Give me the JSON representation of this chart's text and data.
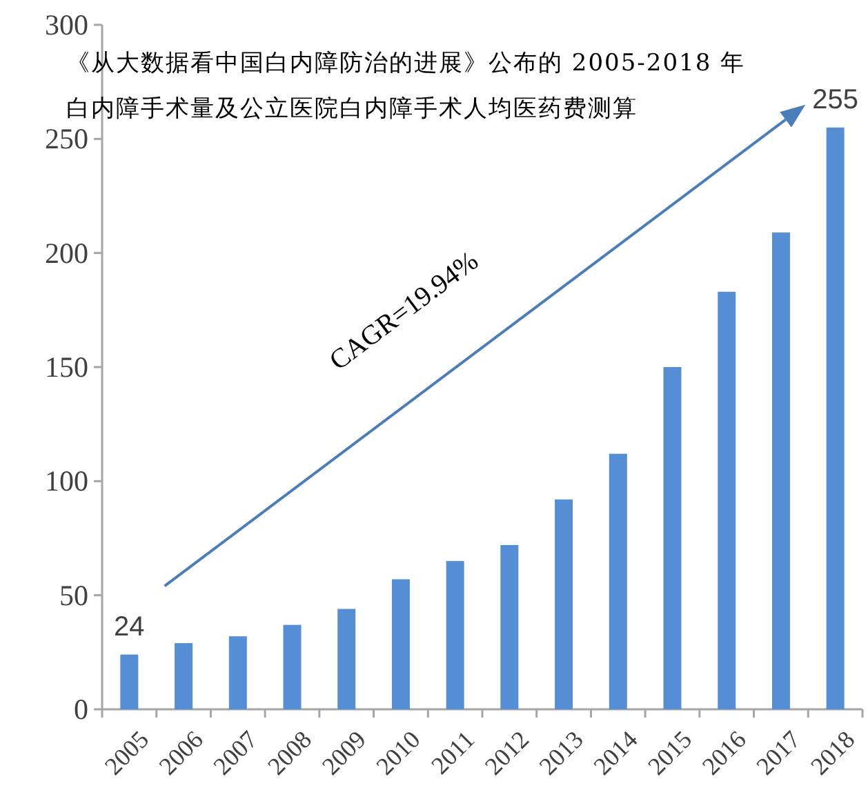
{
  "chart_data": {
    "type": "bar",
    "title": "《从大数据看中国白内障防治的进展》公布的 2005-2018 年白内障手术量及公立医院白内障手术人均医药费测算",
    "categories": [
      "2005",
      "2006",
      "2007",
      "2008",
      "2009",
      "2010",
      "2011",
      "2012",
      "2013",
      "2014",
      "2015",
      "2016",
      "2017",
      "2018"
    ],
    "values": [
      24,
      29,
      32,
      37,
      44,
      57,
      65,
      72,
      92,
      112,
      150,
      183,
      209,
      255
    ],
    "value_labels": [
      "24",
      null,
      null,
      null,
      null,
      null,
      null,
      null,
      null,
      null,
      null,
      null,
      null,
      "255"
    ],
    "color": "#558ed5",
    "ylim": [
      0,
      300
    ],
    "yticks": [
      0,
      50,
      100,
      150,
      200,
      250,
      300
    ],
    "annotations": [
      "CAGR=19.94%"
    ],
    "grid": false
  }
}
